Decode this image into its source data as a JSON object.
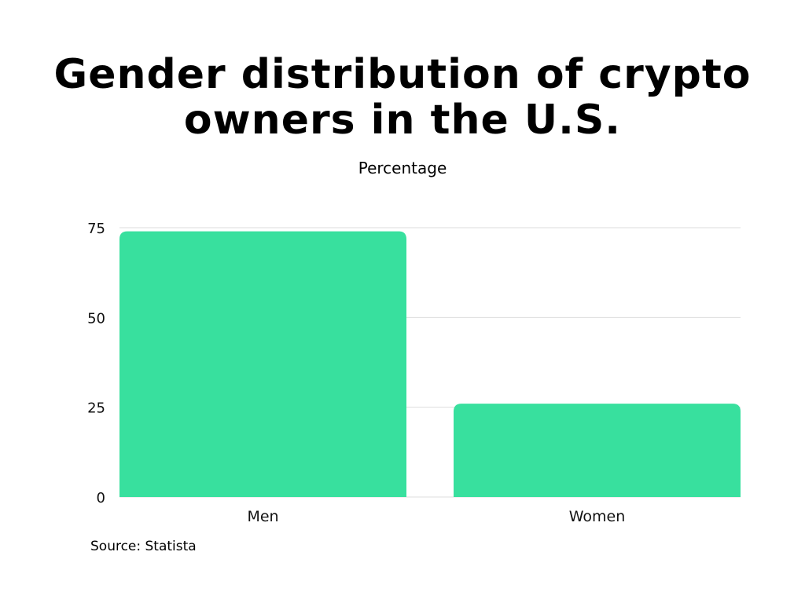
{
  "chart_data": {
    "type": "bar",
    "title": "Gender distribution of crypto owners in the U.S.",
    "subtitle": "Percentage",
    "categories": [
      "Men",
      "Women"
    ],
    "values": [
      74,
      26
    ],
    "ylim": [
      0,
      75
    ],
    "yticks": [
      0,
      25,
      50,
      75
    ],
    "grid": true,
    "bar_color": "#38e09e",
    "source": "Source: Statista"
  }
}
